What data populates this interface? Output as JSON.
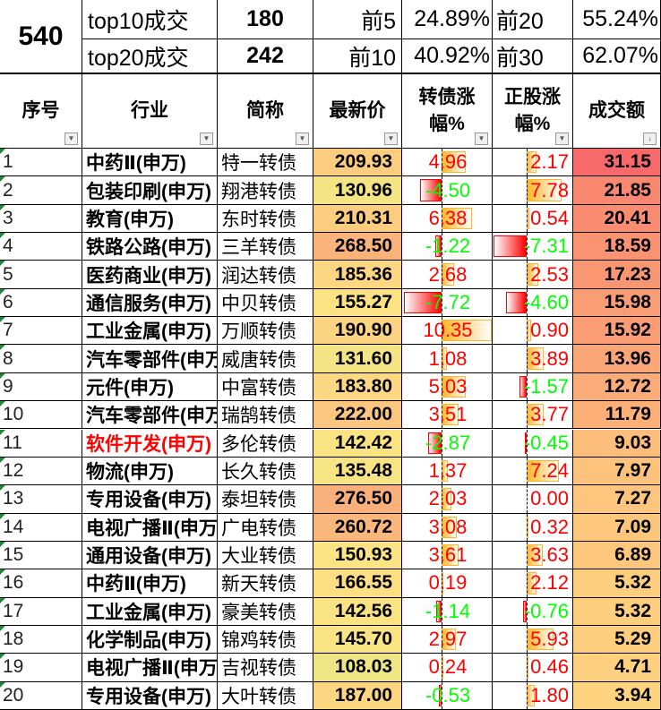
{
  "summary": {
    "count": "540",
    "row1": {
      "label": "top10成交",
      "value": "180",
      "k1": "前5",
      "v1": "24.89%",
      "k2": "前20",
      "v2": "55.24%"
    },
    "row2": {
      "label": "top20成交",
      "value": "242",
      "k1": "前10",
      "v1": "40.92%",
      "k2": "前30",
      "v2": "62.07%"
    }
  },
  "headers": [
    "序号",
    "行业",
    "简称",
    "最新价",
    "转债涨幅%",
    "正股涨幅%",
    "成交额"
  ],
  "colors": {
    "pos_bar": "#ffb628",
    "neg_bar": "#ff0000",
    "pos_text": "#ff0000",
    "neg_text": "#00ff00",
    "highlight_industry": "#ff0000"
  },
  "rows": [
    {
      "no": "1",
      "industry": "中药Ⅱ(申万)",
      "name": "特一转债",
      "price": "209.93",
      "bond_chg": "4.96",
      "stock_chg": "2.17",
      "amount": "31.15"
    },
    {
      "no": "2",
      "industry": "包装印刷(申万)",
      "name": "翔港转债",
      "price": "130.96",
      "bond_chg": "-4.50",
      "stock_chg": "7.78",
      "amount": "21.85"
    },
    {
      "no": "3",
      "industry": "教育(申万)",
      "name": "东时转债",
      "price": "210.31",
      "bond_chg": "6.38",
      "stock_chg": "0.54",
      "amount": "20.41"
    },
    {
      "no": "4",
      "industry": "铁路公路(申万)",
      "name": "三羊转债",
      "price": "268.50",
      "bond_chg": "-1.22",
      "stock_chg": "-7.31",
      "amount": "18.59"
    },
    {
      "no": "5",
      "industry": "医药商业(申万)",
      "name": "润达转债",
      "price": "185.36",
      "bond_chg": "2.68",
      "stock_chg": "2.53",
      "amount": "17.23"
    },
    {
      "no": "6",
      "industry": "通信服务(申万)",
      "name": "中贝转债",
      "price": "155.27",
      "bond_chg": "-7.72",
      "stock_chg": "-4.60",
      "amount": "15.98"
    },
    {
      "no": "7",
      "industry": "工业金属(申万)",
      "name": "万顺转债",
      "price": "190.90",
      "bond_chg": "10.35",
      "stock_chg": "0.90",
      "amount": "15.92"
    },
    {
      "no": "8",
      "industry": "汽车零部件(申万)",
      "name": "威唐转债",
      "price": "131.60",
      "bond_chg": "1.08",
      "stock_chg": "3.89",
      "amount": "13.96"
    },
    {
      "no": "9",
      "industry": "元件(申万)",
      "name": "中富转债",
      "price": "183.80",
      "bond_chg": "5.03",
      "stock_chg": "-1.57",
      "amount": "12.72"
    },
    {
      "no": "10",
      "industry": "汽车零部件(申万)",
      "name": "瑞鹄转债",
      "price": "222.00",
      "bond_chg": "3.51",
      "stock_chg": "3.77",
      "amount": "11.79"
    },
    {
      "no": "11",
      "industry": "软件开发(申万)",
      "name": "多伦转债",
      "price": "142.42",
      "bond_chg": "-2.87",
      "stock_chg": "-0.45",
      "amount": "9.03",
      "highlight": true
    },
    {
      "no": "12",
      "industry": "物流(申万)",
      "name": "长久转债",
      "price": "135.48",
      "bond_chg": "1.37",
      "stock_chg": "7.24",
      "amount": "7.97"
    },
    {
      "no": "13",
      "industry": "专用设备(申万)",
      "name": "泰坦转债",
      "price": "276.50",
      "bond_chg": "2.03",
      "stock_chg": "0.00",
      "amount": "7.27"
    },
    {
      "no": "14",
      "industry": "电视广播Ⅱ(申万)",
      "name": "广电转债",
      "price": "260.72",
      "bond_chg": "3.08",
      "stock_chg": "0.32",
      "amount": "7.09"
    },
    {
      "no": "15",
      "industry": "通用设备(申万)",
      "name": "大业转债",
      "price": "150.93",
      "bond_chg": "3.61",
      "stock_chg": "3.63",
      "amount": "6.89"
    },
    {
      "no": "16",
      "industry": "中药Ⅱ(申万)",
      "name": "新天转债",
      "price": "166.55",
      "bond_chg": "0.19",
      "stock_chg": "2.12",
      "amount": "5.32"
    },
    {
      "no": "17",
      "industry": "工业金属(申万)",
      "name": "豪美转债",
      "price": "142.56",
      "bond_chg": "-1.14",
      "stock_chg": "-0.76",
      "amount": "5.32"
    },
    {
      "no": "18",
      "industry": "化学制品(申万)",
      "name": "锦鸡转债",
      "price": "145.70",
      "bond_chg": "2.97",
      "stock_chg": "5.93",
      "amount": "5.29"
    },
    {
      "no": "19",
      "industry": "电视广播Ⅱ(申万)",
      "name": "吉视转债",
      "price": "108.03",
      "bond_chg": "0.24",
      "stock_chg": "0.46",
      "amount": "4.71"
    },
    {
      "no": "20",
      "industry": "专用设备(申万)",
      "name": "大叶转债",
      "price": "187.00",
      "bond_chg": "-0.53",
      "stock_chg": "1.80",
      "amount": "3.94"
    }
  ]
}
